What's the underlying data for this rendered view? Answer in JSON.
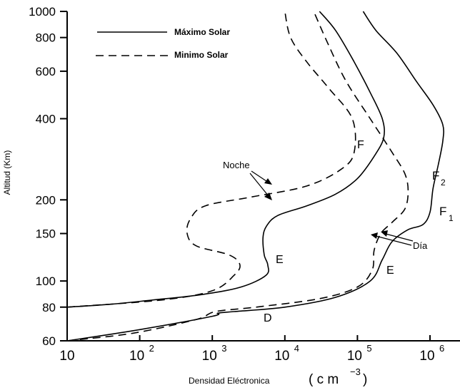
{
  "chart_data": {
    "type": "line",
    "title": "",
    "xlabel": "Densidad  Eléctronica",
    "xlabel_unit": "( c m",
    "xlabel_unit_exp": "−3",
    "xlabel_unit_close": ")",
    "ylabel": "Altitud  (Km)",
    "xscale": "log",
    "yscale": "log",
    "xlim": [
      10,
      2500000
    ],
    "ylim": [
      60,
      1000
    ],
    "grid": false,
    "legend_position": "top-left",
    "x_ticks": [
      {
        "value": 10,
        "base": "10",
        "exp": ""
      },
      {
        "value": 100,
        "base": "10",
        "exp": "2"
      },
      {
        "value": 1000,
        "base": "10",
        "exp": "3"
      },
      {
        "value": 10000,
        "base": "10",
        "exp": "4"
      },
      {
        "value": 100000,
        "base": "10",
        "exp": "5"
      },
      {
        "value": 1000000,
        "base": "10",
        "exp": "6"
      }
    ],
    "y_ticks": [
      {
        "value": 60,
        "label": "60"
      },
      {
        "value": 80,
        "label": "80"
      },
      {
        "value": 100,
        "label": "100"
      },
      {
        "value": 150,
        "label": "150"
      },
      {
        "value": 200,
        "label": "200"
      },
      {
        "value": 400,
        "label": "400"
      },
      {
        "value": 600,
        "label": "600"
      },
      {
        "value": 800,
        "label": "800"
      },
      {
        "value": 1000,
        "label": "1000"
      }
    ],
    "series": [
      {
        "name": "Máximo Solar",
        "style": "solid",
        "curves": [
          {
            "label": "Noche",
            "points": [
              [
                10,
                80
              ],
              [
                40,
                82
              ],
              [
                150,
                85
              ],
              [
                700,
                89
              ],
              [
                2500,
                95
              ],
              [
                5500,
                105
              ],
              [
                5800,
                115
              ],
              [
                5200,
                125
              ],
              [
                5000,
                145
              ],
              [
                5600,
                160
              ],
              [
                8000,
                175
              ],
              [
                20000,
                190
              ],
              [
                50000,
                210
              ],
              [
                100000,
                240
              ],
              [
                170000,
                290
              ],
              [
                230000,
                340
              ],
              [
                220000,
                400
              ],
              [
                150000,
                500
              ],
              [
                90000,
                650
              ],
              [
                50000,
                850
              ],
              [
                30000,
                1000
              ]
            ]
          },
          {
            "label": "Día",
            "points": [
              [
                10,
                60
              ],
              [
                100,
                66
              ],
              [
                1000,
                74
              ],
              [
                1200,
                76
              ],
              [
                2000,
                77
              ],
              [
                10000,
                80
              ],
              [
                50000,
                87
              ],
              [
                150000,
                100
              ],
              [
                220000,
                120
              ],
              [
                300000,
                140
              ],
              [
                500000,
                155
              ],
              [
                800000,
                162
              ],
              [
                1000000,
                180
              ],
              [
                1100000,
                220
              ],
              [
                1300000,
                270
              ],
              [
                1500000,
                330
              ],
              [
                1500000,
                380
              ],
              [
                1100000,
                450
              ],
              [
                650000,
                550
              ],
              [
                350000,
                700
              ],
              [
                180000,
                850
              ],
              [
                120000,
                1000
              ]
            ]
          }
        ]
      },
      {
        "name": "Minimo Solar",
        "style": "dashed",
        "curves": [
          {
            "label": "Noche",
            "points": [
              [
                10,
                80
              ],
              [
                200,
                85
              ],
              [
                1000,
                92
              ],
              [
                2000,
                105
              ],
              [
                2400,
                115
              ],
              [
                1700,
                125
              ],
              [
                600,
                135
              ],
              [
                450,
                150
              ],
              [
                500,
                170
              ],
              [
                800,
                190
              ],
              [
                3500,
                205
              ],
              [
                20000,
                225
              ],
              [
                60000,
                260
              ],
              [
                90000,
                300
              ],
              [
                85000,
                400
              ],
              [
                40000,
                520
              ],
              [
                20000,
                650
              ],
              [
                12000,
                800
              ],
              [
                10000,
                1000
              ]
            ]
          },
          {
            "label": "Día",
            "points": [
              [
                10,
                60
              ],
              [
                80,
                64
              ],
              [
                600,
                72
              ],
              [
                1100,
                77
              ],
              [
                4000,
                80
              ],
              [
                30000,
                86
              ],
              [
                100000,
                95
              ],
              [
                160000,
                110
              ],
              [
                170000,
                130
              ],
              [
                210000,
                150
              ],
              [
                300000,
                165
              ],
              [
                450000,
                185
              ],
              [
                500000,
                215
              ],
              [
                450000,
                250
              ],
              [
                300000,
                300
              ],
              [
                150000,
                400
              ],
              [
                70000,
                550
              ],
              [
                40000,
                750
              ],
              [
                25000,
                1000
              ]
            ]
          }
        ]
      }
    ],
    "annotations": {
      "noche": "Noche",
      "dia": "Día",
      "f": "F",
      "f2_base": "F",
      "f2_sub": "2",
      "f1_base": "F",
      "f1_sub": "1",
      "e_max": "E",
      "e_day": "E",
      "d": "D"
    }
  }
}
